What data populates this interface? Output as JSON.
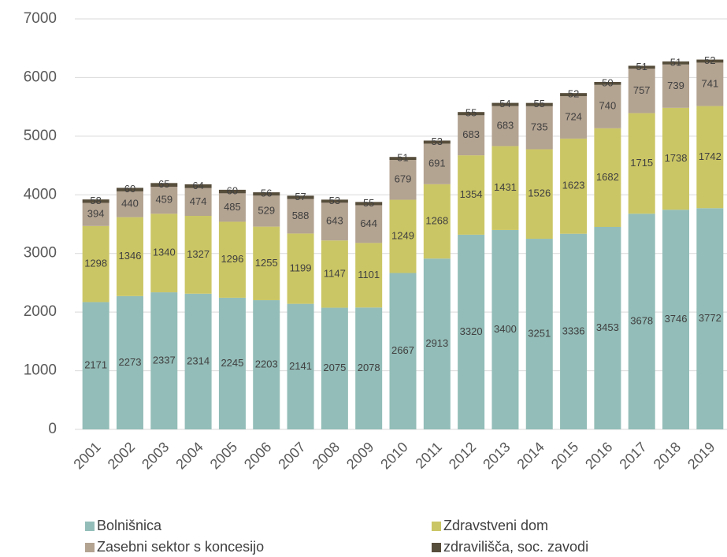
{
  "chart_data": {
    "type": "stacked_bar",
    "categories": [
      "2001",
      "2002",
      "2003",
      "2004",
      "2005",
      "2006",
      "2007",
      "2008",
      "2009",
      "2010",
      "2011",
      "2012",
      "2013",
      "2014",
      "2015",
      "2016",
      "2017",
      "2018",
      "2019"
    ],
    "series": [
      {
        "name": "Bolnišnica",
        "color": "#93bdb8",
        "values": [
          2171,
          2273,
          2337,
          2314,
          2245,
          2203,
          2141,
          2075,
          2078,
          2667,
          2913,
          3320,
          3400,
          3251,
          3336,
          3453,
          3678,
          3746,
          3772
        ]
      },
      {
        "name": "Zdravstveni dom",
        "color": "#cbc665",
        "values": [
          1298,
          1346,
          1340,
          1327,
          1296,
          1255,
          1199,
          1147,
          1101,
          1249,
          1268,
          1354,
          1431,
          1526,
          1623,
          1682,
          1715,
          1738,
          1742
        ]
      },
      {
        "name": "Zasebni sektor s koncesijo",
        "color": "#b3a391",
        "values": [
          394,
          440,
          459,
          474,
          485,
          529,
          588,
          643,
          644,
          679,
          691,
          683,
          683,
          735,
          724,
          740,
          757,
          739,
          741
        ]
      },
      {
        "name": "zdravilišča, soc. zavodi",
        "color": "#574d3b",
        "values": [
          58,
          60,
          65,
          64,
          60,
          56,
          57,
          53,
          55,
          51,
          53,
          55,
          54,
          55,
          52,
          50,
          51,
          51,
          52
        ]
      }
    ],
    "ylim": [
      0,
      7000
    ],
    "yticks": [
      0,
      1000,
      2000,
      3000,
      4000,
      5000,
      6000,
      7000
    ],
    "grid": true
  }
}
